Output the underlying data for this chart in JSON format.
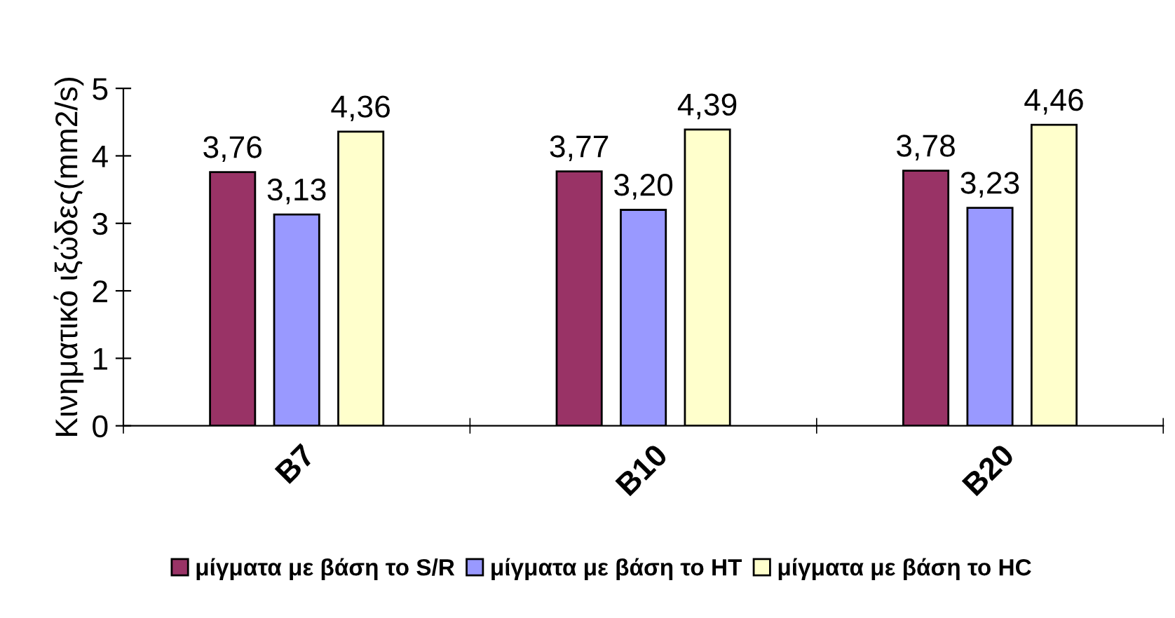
{
  "chart_data": {
    "type": "bar",
    "ylabel": "Κινηματικό ιξώδες(mm2/s)",
    "categories": [
      "B7",
      "B10",
      "B20"
    ],
    "series": [
      {
        "name": "μίγματα με βάση το S/R",
        "color": "#993366",
        "values": [
          3.76,
          3.77,
          3.78
        ],
        "value_labels": [
          "3,76",
          "3,77",
          "3,78"
        ]
      },
      {
        "name": "μίγματα με βάση το HT",
        "color": "#9999ff",
        "values": [
          3.13,
          3.2,
          3.23
        ],
        "value_labels": [
          "3,13",
          "3,20",
          "3,23"
        ]
      },
      {
        "name": "μίγματα με βάση το HC",
        "color": "#ffffcc",
        "values": [
          4.36,
          4.39,
          4.46
        ],
        "value_labels": [
          "4,36",
          "4,39",
          "4,46"
        ]
      }
    ],
    "ylim": [
      0,
      5
    ],
    "yticks": [
      0,
      1,
      2,
      3,
      4,
      5
    ],
    "grid": false,
    "legend": "bottom"
  }
}
